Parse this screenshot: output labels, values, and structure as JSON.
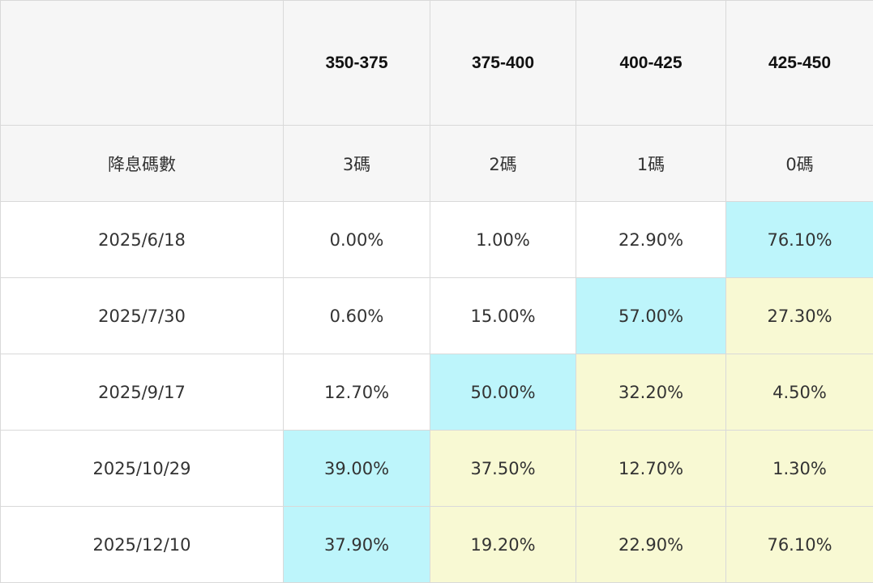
{
  "table": {
    "header": {
      "corner": "",
      "ranges": [
        "350-375",
        "375-400",
        "400-425",
        "425-450"
      ]
    },
    "cuts_row": {
      "label": "降息碼數",
      "values": [
        "3碼",
        "2碼",
        "1碼",
        "0碼"
      ]
    },
    "rows": [
      {
        "date": "2025/6/18",
        "values": [
          "0.00%",
          "1.00%",
          "22.90%",
          "76.10%"
        ],
        "highlights": [
          "none",
          "none",
          "none",
          "blue"
        ]
      },
      {
        "date": "2025/7/30",
        "values": [
          "0.60%",
          "15.00%",
          "57.00%",
          "27.30%"
        ],
        "highlights": [
          "none",
          "none",
          "blue",
          "yellow"
        ]
      },
      {
        "date": "2025/9/17",
        "values": [
          "12.70%",
          "50.00%",
          "32.20%",
          "4.50%"
        ],
        "highlights": [
          "none",
          "blue",
          "yellow",
          "yellow"
        ]
      },
      {
        "date": "2025/10/29",
        "values": [
          "39.00%",
          "37.50%",
          "12.70%",
          "1.30%"
        ],
        "highlights": [
          "blue",
          "yellow",
          "yellow",
          "yellow"
        ]
      },
      {
        "date": "2025/12/10",
        "values": [
          "37.90%",
          "19.20%",
          "22.90%",
          "76.10%"
        ],
        "highlights": [
          "blue",
          "yellow",
          "yellow",
          "yellow"
        ]
      }
    ]
  },
  "colors": {
    "header_bg": "#f6f6f6",
    "highlight_blue": "#bdf5fb",
    "highlight_yellow": "#f8f9d3",
    "border": "#d9d9d9"
  }
}
